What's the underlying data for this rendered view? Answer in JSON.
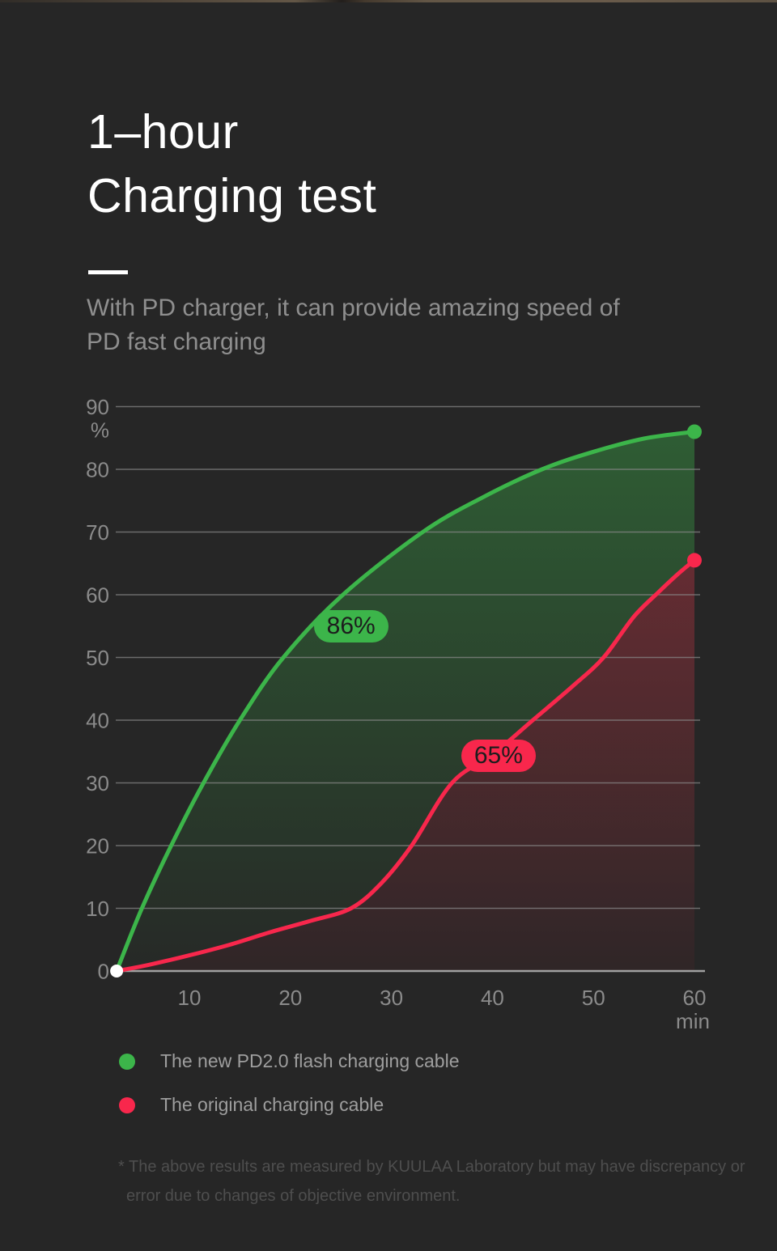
{
  "page": {
    "background": "#262626"
  },
  "header": {
    "title_line1": "1–hour",
    "title_line2": "Charging test",
    "subtitle_line1": "With PD charger, it can provide amazing speed of",
    "subtitle_line2": "PD fast charging"
  },
  "chart_data": {
    "type": "line",
    "x": {
      "unit_label": "min",
      "ticks": [
        10,
        20,
        30,
        40,
        50,
        60
      ],
      "range": [
        0,
        60
      ]
    },
    "y": {
      "unit_label": "%",
      "ticks": [
        0,
        10,
        20,
        30,
        40,
        50,
        60,
        70,
        80,
        90
      ],
      "range": [
        0,
        90
      ]
    },
    "grid": "horizontal-only",
    "legend_position": "bottom-left",
    "start_marker_color": "#FFFFFF",
    "series": [
      {
        "name": "The new PD2.0 flash charging cable",
        "color": "#3CB54A",
        "final_value": 86,
        "label": "86%",
        "label_anchor": [
          26,
          55
        ],
        "points": [
          [
            2.8,
            0
          ],
          [
            5.3,
            10
          ],
          [
            8.2,
            20
          ],
          [
            11.4,
            30
          ],
          [
            15,
            40
          ],
          [
            19.3,
            50
          ],
          [
            25.2,
            60
          ],
          [
            33.1,
            70
          ],
          [
            39,
            75.5
          ],
          [
            44.9,
            80
          ],
          [
            50,
            82.8
          ],
          [
            55,
            84.9
          ],
          [
            60,
            86
          ]
        ]
      },
      {
        "name": "The original charging cable",
        "color": "#F8274C",
        "final_value": 65,
        "label": "65%",
        "label_anchor": [
          40.6,
          34.3
        ],
        "points": [
          [
            2.8,
            0
          ],
          [
            6,
            1
          ],
          [
            10,
            2.5
          ],
          [
            14,
            4.2
          ],
          [
            18,
            6.2
          ],
          [
            22,
            8
          ],
          [
            26,
            10
          ],
          [
            29,
            14
          ],
          [
            32,
            20
          ],
          [
            36,
            30
          ],
          [
            40,
            34.5
          ],
          [
            44,
            40
          ],
          [
            48,
            45.5
          ],
          [
            51,
            50
          ],
          [
            54,
            56.5
          ],
          [
            56.5,
            60.5
          ],
          [
            58.5,
            63.5
          ],
          [
            60,
            65.5
          ]
        ]
      }
    ]
  },
  "footnote": {
    "line1": "* The above results are measured by KUULAA Laboratory but may have discrepancy or",
    "line2": "error due to changes of objective environment."
  }
}
